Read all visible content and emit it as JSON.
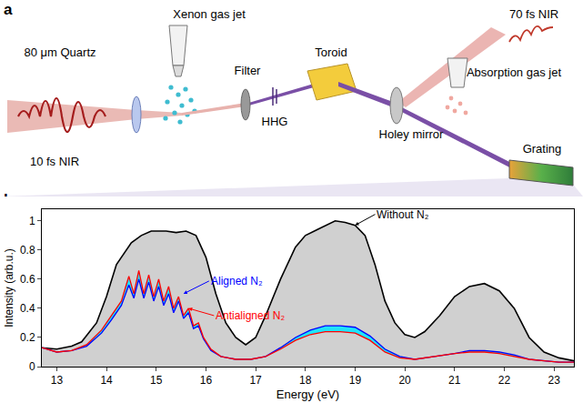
{
  "diagram": {
    "panel_label": "a",
    "labels": {
      "laser_in": "10 fs NIR",
      "quartz": "80 μm Quartz",
      "xenon": "Xenon gas jet",
      "filter": "Filter",
      "hhg": "HHG",
      "toroid": "Toroid",
      "holey": "Holey mirror",
      "probe": "70 fs NIR",
      "absorption": "Absorption gas jet",
      "grating": "Grating"
    }
  },
  "chart_data": {
    "type": "line",
    "panel_label": "b",
    "x_label": "Energy (eV)",
    "y_label": "Intensity (arb.u.)",
    "xlim": [
      12.7,
      23.4
    ],
    "xticks": [
      13,
      14,
      15,
      16,
      17,
      18,
      19,
      20,
      21,
      22,
      23
    ],
    "ylim": [
      0,
      1.08
    ],
    "yticks": [
      0,
      0.2,
      0.4,
      0.6,
      0.8,
      1
    ],
    "grid": false,
    "series": [
      {
        "name": "Without N₂",
        "color": "#000000",
        "x": [
          12.7,
          13.0,
          13.3,
          13.5,
          13.8,
          14.0,
          14.2,
          14.5,
          14.7,
          14.9,
          15.2,
          15.4,
          15.6,
          15.8,
          16.0,
          16.2,
          16.4,
          16.6,
          16.8,
          17.0,
          17.2,
          17.5,
          17.8,
          18.0,
          18.3,
          18.6,
          18.8,
          19.0,
          19.2,
          19.4,
          19.6,
          19.8,
          20.0,
          20.2,
          20.4,
          20.7,
          21.0,
          21.3,
          21.6,
          21.9,
          22.2,
          22.5,
          22.8,
          23.1,
          23.4
        ],
        "values": [
          0.13,
          0.12,
          0.14,
          0.17,
          0.3,
          0.48,
          0.7,
          0.85,
          0.9,
          0.93,
          0.93,
          0.92,
          0.93,
          0.9,
          0.75,
          0.5,
          0.3,
          0.2,
          0.15,
          0.2,
          0.35,
          0.6,
          0.82,
          0.9,
          0.95,
          1.0,
          0.99,
          0.97,
          0.9,
          0.7,
          0.45,
          0.3,
          0.22,
          0.2,
          0.24,
          0.35,
          0.48,
          0.55,
          0.57,
          0.52,
          0.4,
          0.2,
          0.1,
          0.06,
          0.04
        ]
      },
      {
        "name": "Aligned N₂",
        "color": "#0000ff",
        "x": [
          12.7,
          13.0,
          13.3,
          13.6,
          13.9,
          14.1,
          14.3,
          14.45,
          14.55,
          14.65,
          14.75,
          14.85,
          14.95,
          15.05,
          15.15,
          15.25,
          15.35,
          15.45,
          15.55,
          15.65,
          15.75,
          15.85,
          15.95,
          16.1,
          16.3,
          16.6,
          16.9,
          17.2,
          17.5,
          17.8,
          18.1,
          18.4,
          18.7,
          19.0,
          19.3,
          19.6,
          19.9,
          20.2,
          20.6,
          21.0,
          21.3,
          21.6,
          21.9,
          22.2,
          22.5,
          22.8,
          23.1,
          23.4
        ],
        "values": [
          0.13,
          0.1,
          0.11,
          0.14,
          0.23,
          0.32,
          0.42,
          0.56,
          0.47,
          0.6,
          0.47,
          0.58,
          0.45,
          0.55,
          0.42,
          0.5,
          0.37,
          0.45,
          0.33,
          0.37,
          0.26,
          0.28,
          0.19,
          0.11,
          0.07,
          0.05,
          0.05,
          0.07,
          0.13,
          0.2,
          0.25,
          0.28,
          0.28,
          0.27,
          0.21,
          0.12,
          0.07,
          0.05,
          0.07,
          0.09,
          0.11,
          0.11,
          0.1,
          0.08,
          0.05,
          0.04,
          0.03,
          0.03
        ]
      },
      {
        "name": "Antialigned N₂",
        "color": "#ff0000",
        "x": [
          12.7,
          13.0,
          13.3,
          13.6,
          13.9,
          14.1,
          14.3,
          14.45,
          14.55,
          14.65,
          14.75,
          14.85,
          14.95,
          15.05,
          15.15,
          15.25,
          15.35,
          15.45,
          15.55,
          15.65,
          15.75,
          15.85,
          15.95,
          16.1,
          16.3,
          16.6,
          16.9,
          17.2,
          17.5,
          17.8,
          18.1,
          18.4,
          18.7,
          19.0,
          19.3,
          19.6,
          19.9,
          20.2,
          20.6,
          21.0,
          21.3,
          21.6,
          21.9,
          22.2,
          22.5,
          22.8,
          23.1,
          23.4
        ],
        "values": [
          0.13,
          0.1,
          0.11,
          0.15,
          0.25,
          0.35,
          0.45,
          0.62,
          0.5,
          0.66,
          0.5,
          0.63,
          0.48,
          0.6,
          0.45,
          0.55,
          0.4,
          0.48,
          0.35,
          0.4,
          0.28,
          0.3,
          0.2,
          0.12,
          0.07,
          0.05,
          0.05,
          0.07,
          0.12,
          0.18,
          0.22,
          0.24,
          0.24,
          0.23,
          0.18,
          0.1,
          0.06,
          0.05,
          0.07,
          0.09,
          0.1,
          0.1,
          0.09,
          0.07,
          0.05,
          0.04,
          0.03,
          0.03
        ]
      }
    ],
    "annotations": [
      {
        "text": "Without N₂",
        "x": 19.0,
        "y": 0.97,
        "color": "#000000"
      },
      {
        "text": "Aligned N₂",
        "x": 15.55,
        "y": 0.5,
        "color": "#0000ff"
      },
      {
        "text": "Antialigned N₂",
        "x": 15.65,
        "y": 0.4,
        "color": "#ff0000"
      }
    ]
  }
}
